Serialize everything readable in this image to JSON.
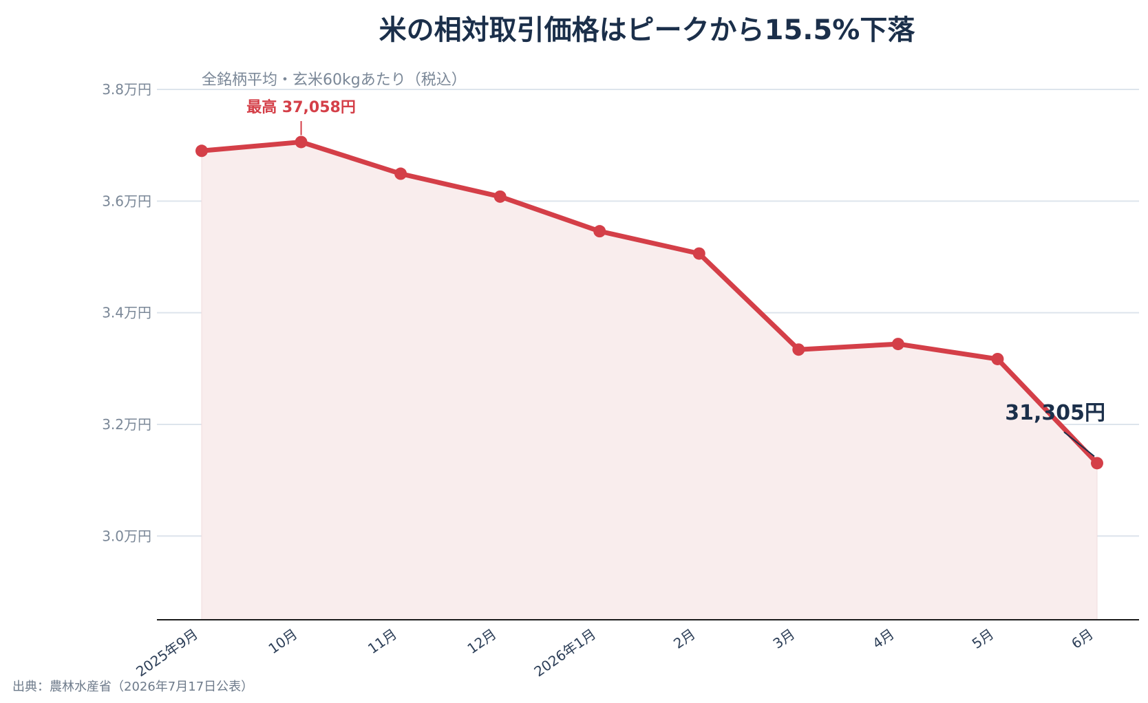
{
  "chart_data": {
    "type": "area",
    "title": "米の相対取引価格はピークから15.5%下落",
    "subtitle": "全銘柄平均・玄米60kgあたり（税込）",
    "categories": [
      "2025年9月",
      "10月",
      "11月",
      "12月",
      "2026年1月",
      "2月",
      "3月",
      "4月",
      "5月",
      "6月"
    ],
    "series": [
      {
        "values": [
          36900,
          37058,
          36490,
          36080,
          35460,
          35060,
          33340,
          33440,
          33170,
          31305
        ]
      }
    ],
    "ylim": [
      28500,
      38000
    ],
    "yticks": [
      30000,
      32000,
      34000,
      36000,
      38000
    ],
    "ytick_labels": [
      "3.0万円",
      "3.2万円",
      "3.4万円",
      "3.6万円",
      "3.8万円"
    ],
    "grid": true,
    "annotations": {
      "peak": {
        "category": "10月",
        "text": "最高 37,058円"
      },
      "last": {
        "category": "6月",
        "text": "31,305円"
      }
    },
    "source": "出典：農林水産省（2026年7月17日公表）",
    "colors": {
      "line": "#d43f48",
      "fill": "#f9eded",
      "grid": "#dde4ec",
      "title": "#1b2f4a",
      "axis": "#1a1a1a"
    }
  }
}
